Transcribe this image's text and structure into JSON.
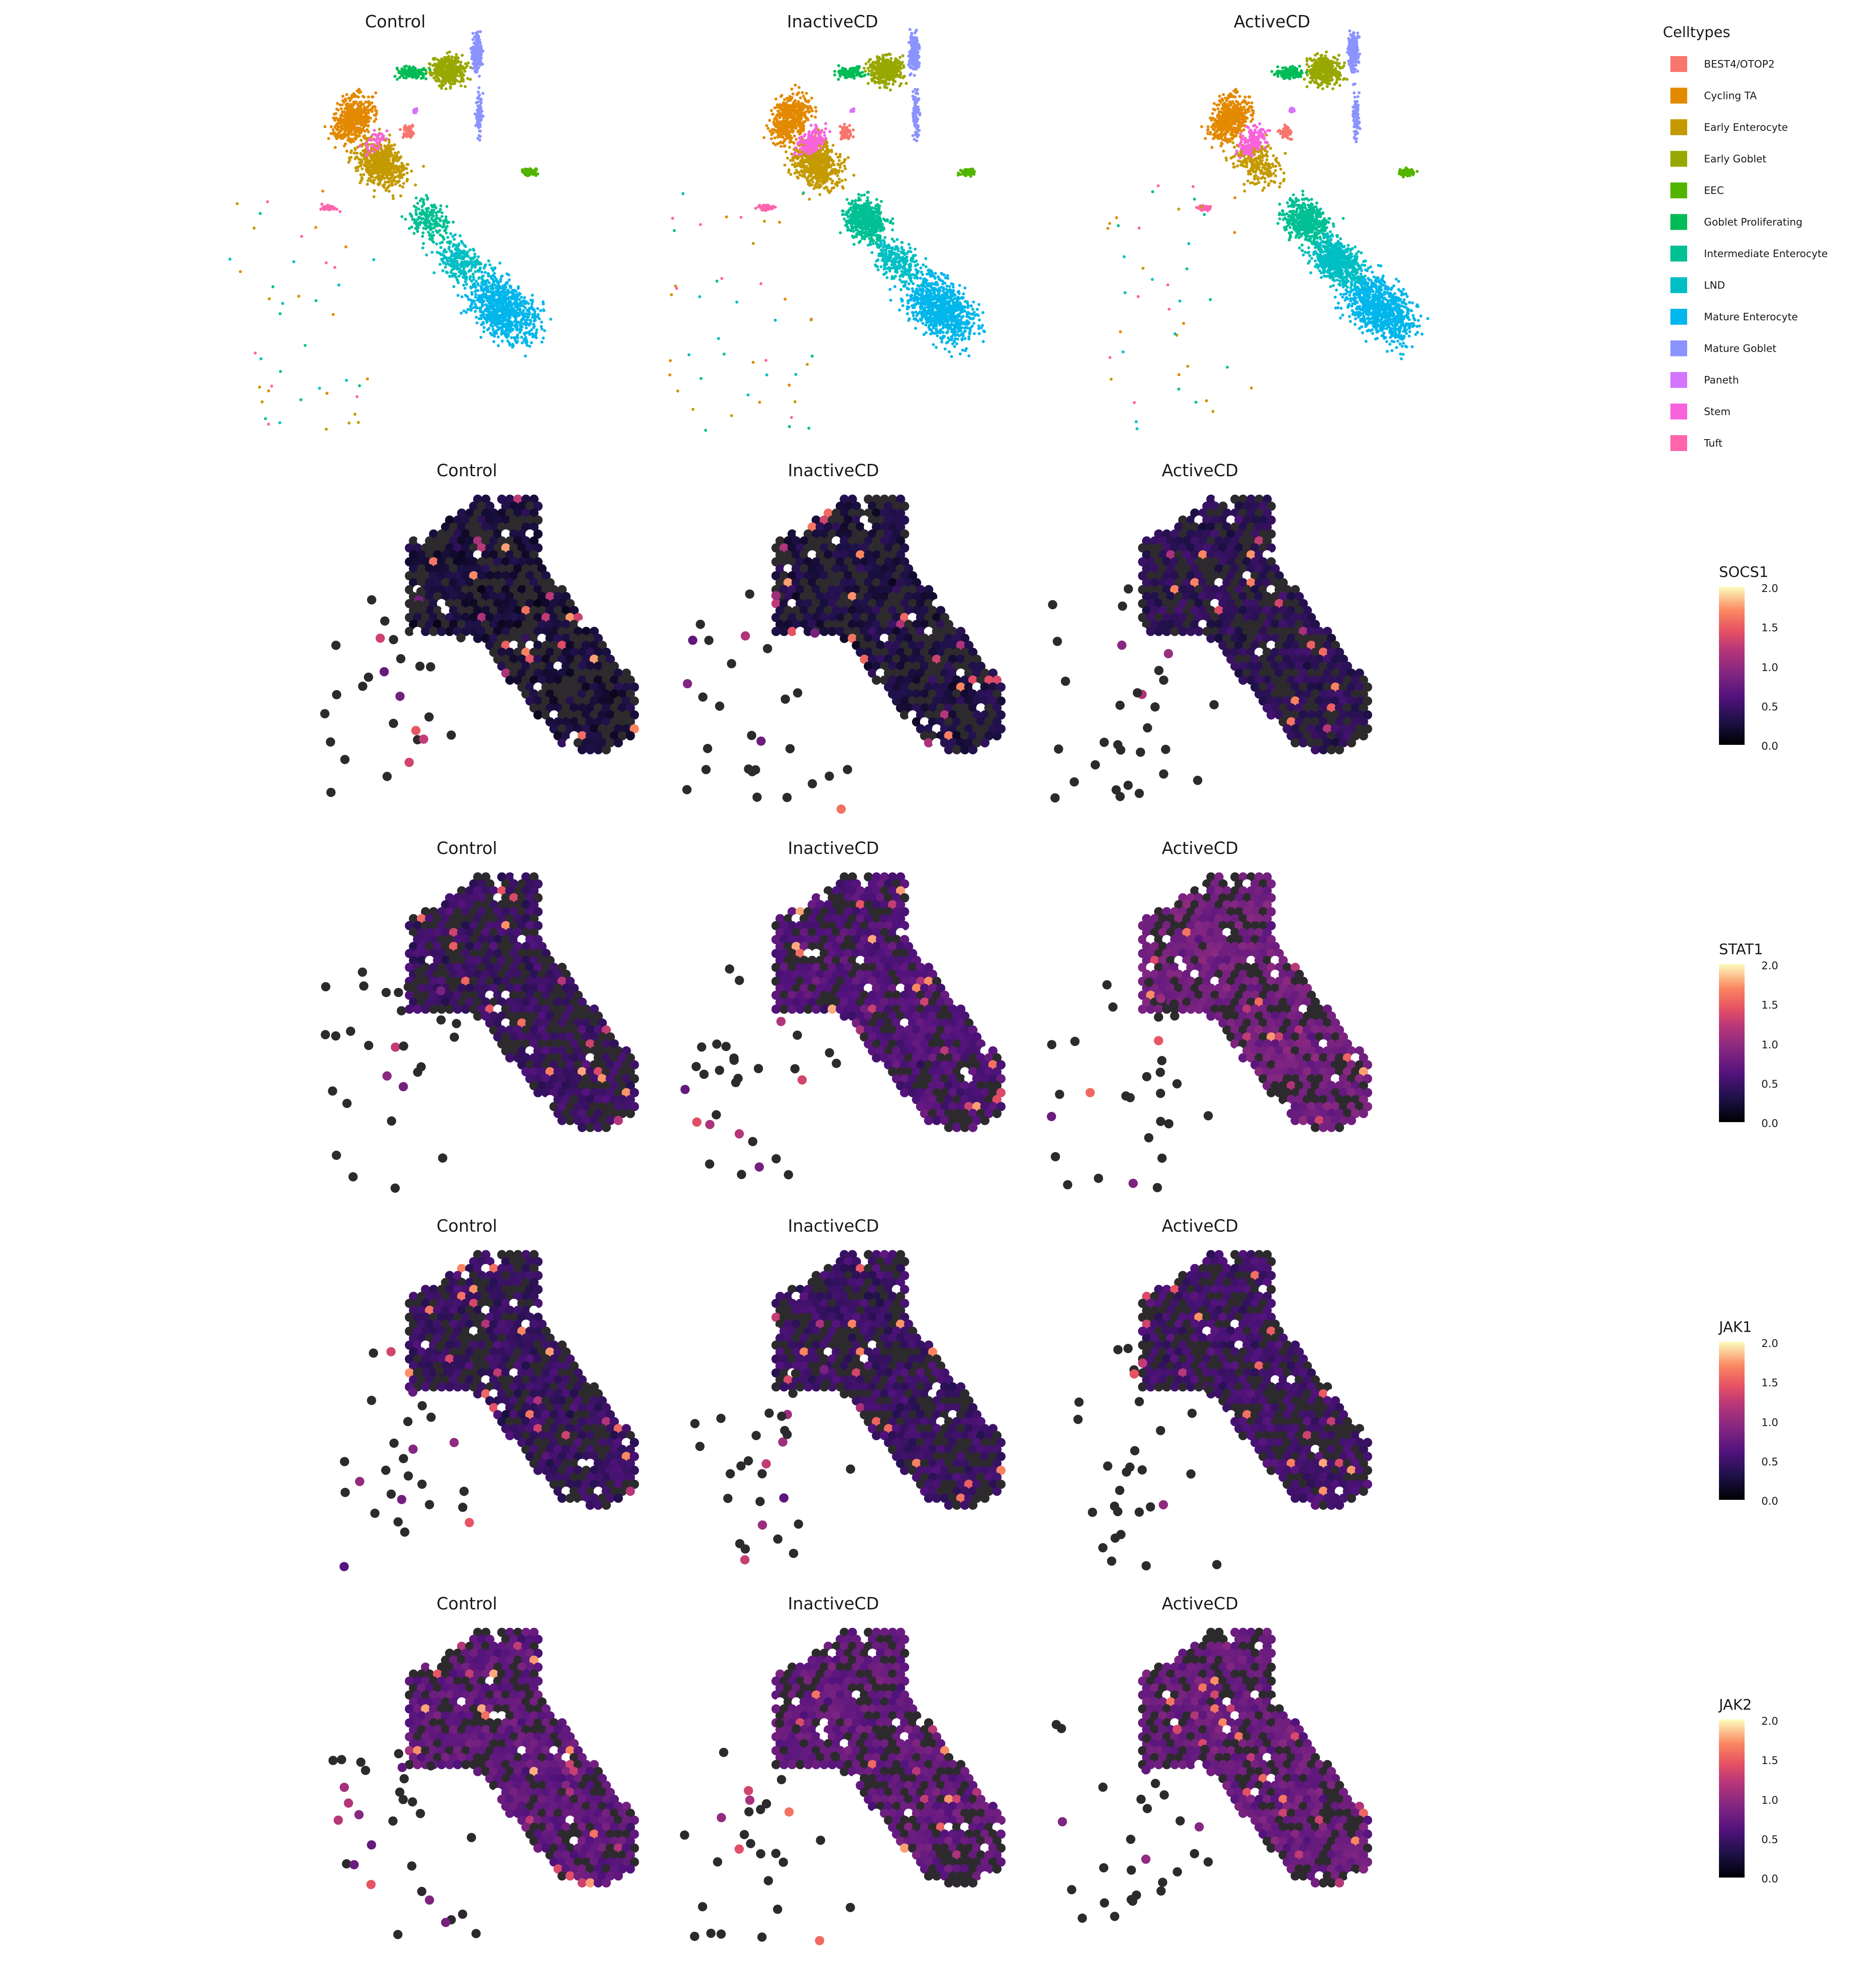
{
  "chart_data": [
    {
      "type": "scatter",
      "description_role": "umap-celltype",
      "panels": [
        "Control",
        "InactiveCD",
        "ActiveCD"
      ],
      "legend": {
        "title": "Celltypes",
        "position": "right",
        "entries": [
          {
            "label": "BEST4/OTOP2",
            "color": "#F8766D"
          },
          {
            "label": "Cycling TA",
            "color": "#E38900"
          },
          {
            "label": "Early Enterocyte",
            "color": "#C49A00"
          },
          {
            "label": "Early Goblet",
            "color": "#99A800"
          },
          {
            "label": "EEC",
            "color": "#53B400"
          },
          {
            "label": "Goblet Proliferating",
            "color": "#00BC56"
          },
          {
            "label": "Intermediate Enterocyte",
            "color": "#00C094"
          },
          {
            "label": "LND",
            "color": "#00BFC4"
          },
          {
            "label": "Mature Enterocyte",
            "color": "#00B6EB"
          },
          {
            "label": "Mature Goblet",
            "color": "#8B93FF"
          },
          {
            "label": "Paneth",
            "color": "#D575FE"
          },
          {
            "label": "Stem",
            "color": "#F962DD"
          },
          {
            "label": "Tuft",
            "color": "#FF65AC"
          }
        ]
      },
      "grid": false
    },
    {
      "type": "heatmap",
      "description_role": "hexbin-expression",
      "gene": "SOCS1",
      "panels": [
        "Control",
        "InactiveCD",
        "ActiveCD"
      ],
      "color_scale": {
        "ticks": [
          "2.0",
          "1.5",
          "1.0",
          "0.5",
          "0.0"
        ],
        "range": [
          0,
          2
        ]
      },
      "panel_mean_level": [
        0.08,
        0.12,
        0.22
      ],
      "grid": false
    },
    {
      "type": "heatmap",
      "description_role": "hexbin-expression",
      "gene": "STAT1",
      "panels": [
        "Control",
        "InactiveCD",
        "ActiveCD"
      ],
      "color_scale": {
        "ticks": [
          "2.0",
          "1.5",
          "1.0",
          "0.5",
          "0.0"
        ],
        "range": [
          0,
          2
        ]
      },
      "panel_mean_level": [
        0.3,
        0.42,
        0.6
      ],
      "grid": false
    },
    {
      "type": "heatmap",
      "description_role": "hexbin-expression",
      "gene": "JAK1",
      "panels": [
        "Control",
        "InactiveCD",
        "ActiveCD"
      ],
      "color_scale": {
        "ticks": [
          "2.0",
          "1.5",
          "1.0",
          "0.5",
          "0.0"
        ],
        "range": [
          0,
          2
        ]
      },
      "panel_mean_level": [
        0.28,
        0.3,
        0.34
      ],
      "grid": false
    },
    {
      "type": "heatmap",
      "description_role": "hexbin-expression",
      "gene": "JAK2",
      "panels": [
        "Control",
        "InactiveCD",
        "ActiveCD"
      ],
      "color_scale": {
        "ticks": [
          "2.0",
          "1.5",
          "1.0",
          "0.5",
          "0.0"
        ],
        "range": [
          0,
          2
        ]
      },
      "panel_mean_level": [
        0.5,
        0.52,
        0.55
      ],
      "grid": false
    }
  ],
  "colors": {
    "background": "#ffffff",
    "magma_low": "#000004",
    "magma_mid": "#8c2981",
    "magma_high": "#fcfdbf",
    "zero_expression": "#2d2a2e"
  }
}
